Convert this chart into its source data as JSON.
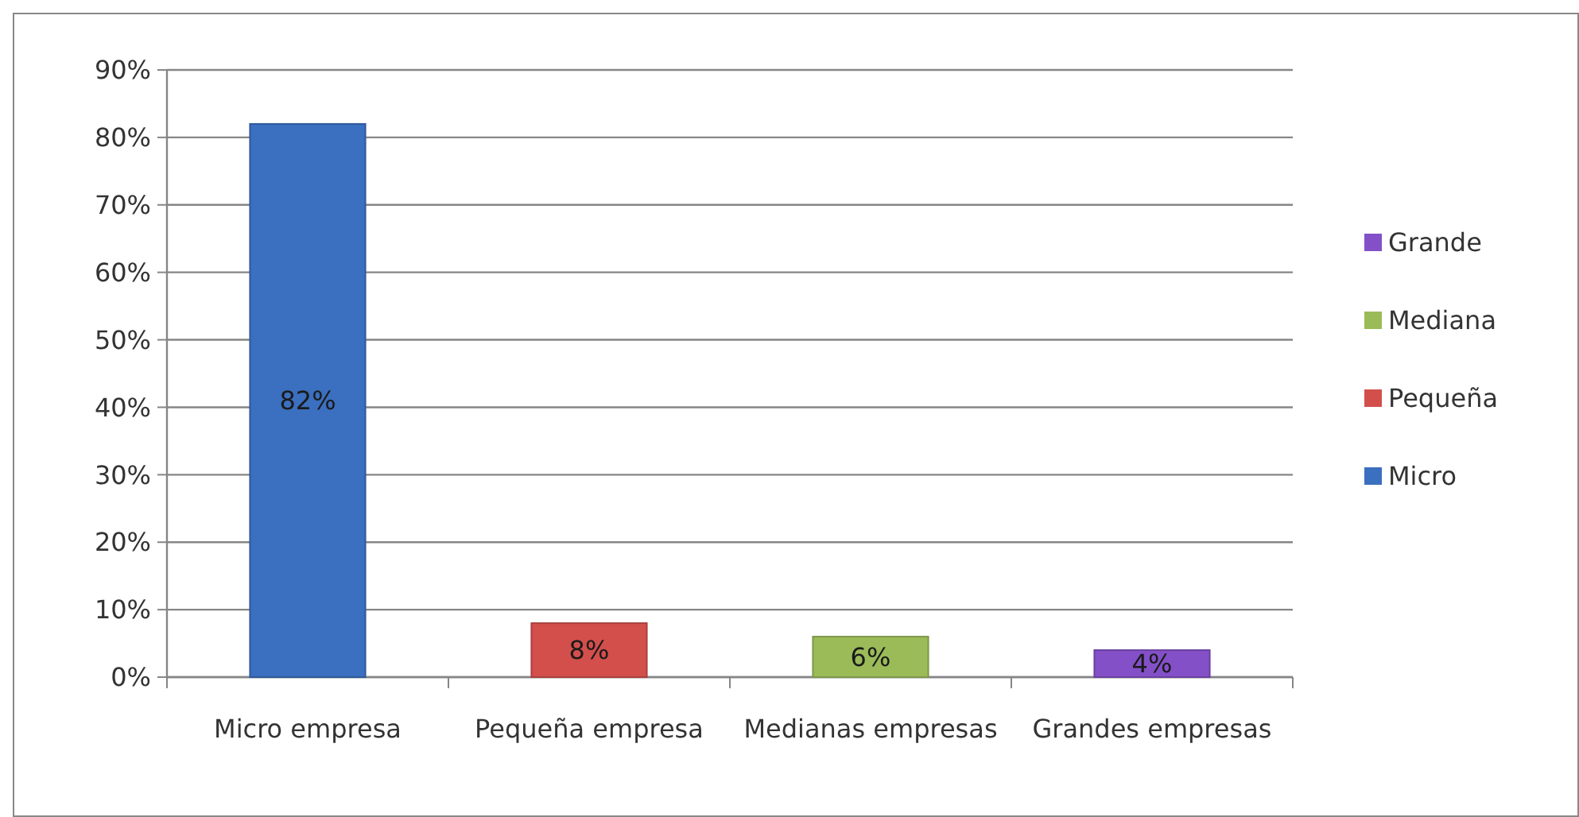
{
  "chart_data": {
    "type": "bar",
    "categories": [
      "Micro empresa",
      "Pequeña empresa",
      "Medianas empresas",
      "Grandes empresas"
    ],
    "series": [
      {
        "name": "Micro",
        "color": "#3b6fbf",
        "values": [
          82,
          null,
          null,
          null
        ]
      },
      {
        "name": "Pequeña",
        "color": "#d24f4b",
        "values": [
          null,
          8,
          null,
          null
        ]
      },
      {
        "name": "Mediana",
        "color": "#9bbb59",
        "values": [
          null,
          null,
          6,
          null
        ]
      },
      {
        "name": "Grande",
        "color": "#8350c8",
        "values": [
          null,
          null,
          null,
          4
        ]
      }
    ],
    "value_labels": [
      [
        "82%",
        null,
        null,
        null
      ],
      [
        null,
        "8%",
        null,
        null
      ],
      [
        null,
        null,
        "6%",
        null
      ],
      [
        null,
        null,
        null,
        "4%"
      ]
    ],
    "ylim": [
      0,
      90
    ],
    "yticks": [
      {
        "value": 0,
        "label": "0%"
      },
      {
        "value": 10,
        "label": "10%"
      },
      {
        "value": 20,
        "label": "20%"
      },
      {
        "value": 30,
        "label": "30%"
      },
      {
        "value": 40,
        "label": "40%"
      },
      {
        "value": 50,
        "label": "50%"
      },
      {
        "value": 60,
        "label": "60%"
      },
      {
        "value": 70,
        "label": "70%"
      },
      {
        "value": 80,
        "label": "80%"
      },
      {
        "value": 90,
        "label": "90%"
      }
    ],
    "grid": "y",
    "legend": "right"
  }
}
